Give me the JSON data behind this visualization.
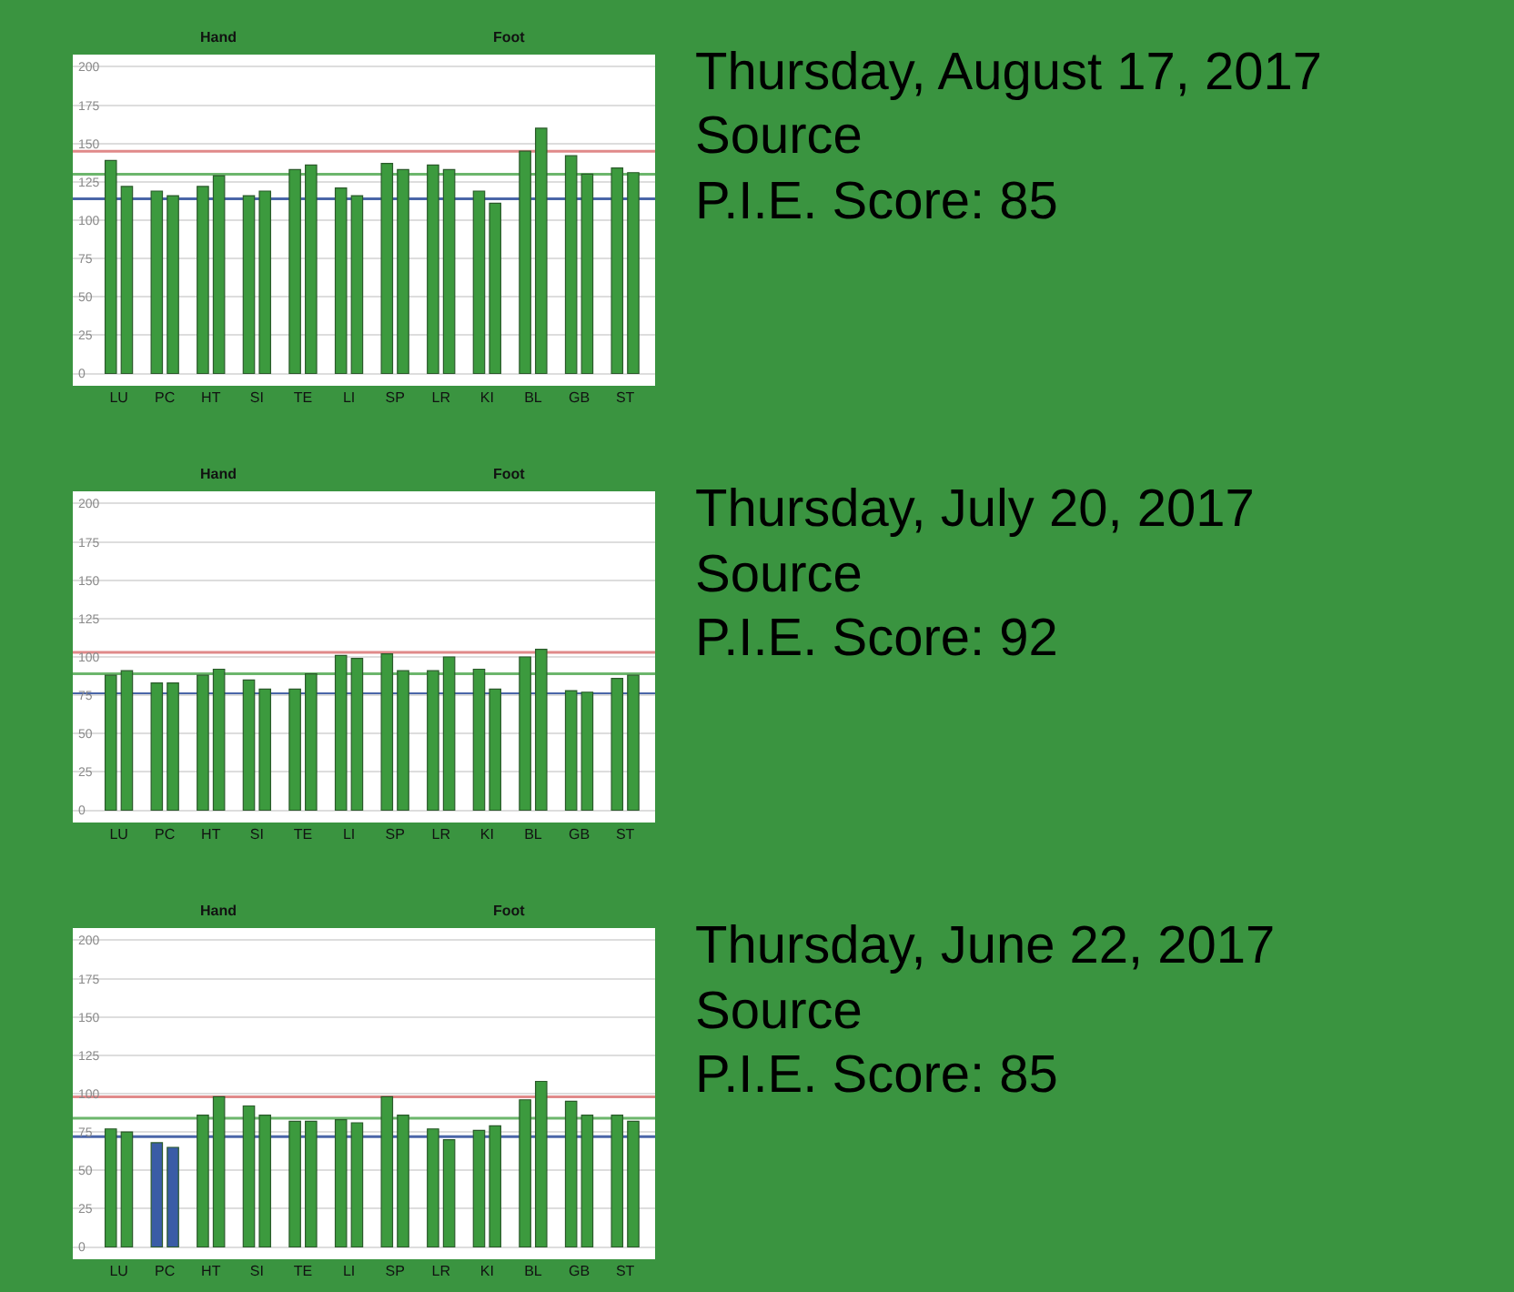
{
  "chart_data": [
    {
      "type": "bar",
      "annotations": [
        "Hand",
        "Foot"
      ],
      "categories": [
        "LU",
        "PC",
        "HT",
        "SI",
        "TE",
        "LI",
        "SP",
        "LR",
        "KI",
        "BL",
        "GB",
        "ST"
      ],
      "series": [
        {
          "color": "#3c9a3e",
          "values": [
            139,
            119,
            122,
            116,
            133,
            121,
            137,
            136,
            119,
            145,
            142,
            134
          ]
        },
        {
          "color": "#3c9a3e",
          "values": [
            122,
            116,
            129,
            119,
            136,
            116,
            133,
            133,
            111,
            160,
            130,
            131
          ]
        }
      ],
      "ylim": [
        -8,
        208
      ],
      "yticks": [
        0,
        25,
        50,
        75,
        100,
        125,
        150,
        175,
        200
      ],
      "grid": "y",
      "ref_lines": [
        {
          "axis": "y",
          "value": 145,
          "color": "#e08a8a"
        },
        {
          "axis": "y",
          "value": 130,
          "color": "#6cb66c"
        },
        {
          "axis": "y",
          "value": 114,
          "color": "#4a66a8"
        }
      ]
    },
    {
      "type": "other",
      "title": "Thursday, August 17, 2017",
      "annotations": [
        "Source",
        "P.I.E. Score: 85"
      ]
    },
    {
      "type": "bar",
      "annotations": [
        "Hand",
        "Foot"
      ],
      "categories": [
        "LU",
        "PC",
        "HT",
        "SI",
        "TE",
        "LI",
        "SP",
        "LR",
        "KI",
        "BL",
        "GB",
        "ST"
      ],
      "series": [
        {
          "color": "#3c9a3e",
          "values": [
            88,
            83,
            88,
            85,
            79,
            101,
            102,
            91,
            92,
            100,
            78,
            86
          ]
        },
        {
          "color": "#3c9a3e",
          "values": [
            91,
            83,
            92,
            79,
            89,
            99,
            91,
            100,
            79,
            105,
            77,
            88
          ]
        }
      ],
      "ylim": [
        -8,
        208
      ],
      "yticks": [
        0,
        25,
        50,
        75,
        100,
        125,
        150,
        175,
        200
      ],
      "grid": "y",
      "ref_lines": [
        {
          "axis": "y",
          "value": 103,
          "color": "#e08a8a"
        },
        {
          "axis": "y",
          "value": 89,
          "color": "#6cb66c"
        },
        {
          "axis": "y",
          "value": 76,
          "color": "#4a66a8"
        }
      ]
    },
    {
      "type": "other",
      "title": "Thursday, July 20, 2017",
      "annotations": [
        "Source",
        "P.I.E. Score: 92"
      ]
    },
    {
      "type": "bar",
      "annotations": [
        "Hand",
        "Foot"
      ],
      "categories": [
        "LU",
        "PC",
        "HT",
        "SI",
        "TE",
        "LI",
        "SP",
        "LR",
        "KI",
        "BL",
        "GB",
        "ST"
      ],
      "series": [
        {
          "colors": [
            "#3c9a3e",
            "#3a5ca6",
            "#3c9a3e",
            "#3c9a3e",
            "#3c9a3e",
            "#3c9a3e",
            "#3c9a3e",
            "#3c9a3e",
            "#3c9a3e",
            "#3c9a3e",
            "#3c9a3e",
            "#3c9a3e"
          ],
          "values": [
            77,
            68,
            86,
            92,
            82,
            83,
            98,
            77,
            76,
            96,
            95,
            86
          ]
        },
        {
          "colors": [
            "#3c9a3e",
            "#3a5ca6",
            "#3c9a3e",
            "#3c9a3e",
            "#3c9a3e",
            "#3c9a3e",
            "#3c9a3e",
            "#3c9a3e",
            "#3c9a3e",
            "#3c9a3e",
            "#3c9a3e",
            "#3c9a3e"
          ],
          "values": [
            75,
            65,
            98,
            86,
            82,
            81,
            86,
            70,
            79,
            108,
            86,
            82
          ]
        }
      ],
      "ylim": [
        -8,
        208
      ],
      "yticks": [
        0,
        25,
        50,
        75,
        100,
        125,
        150,
        175,
        200
      ],
      "grid": "y",
      "ref_lines": [
        {
          "axis": "y",
          "value": 98,
          "color": "#e08a8a"
        },
        {
          "axis": "y",
          "value": 84,
          "color": "#6cb66c"
        },
        {
          "axis": "y",
          "value": 72,
          "color": "#4a66a8"
        }
      ]
    },
    {
      "type": "other",
      "title": "Thursday, June 22, 2017",
      "annotations": [
        "Source",
        "P.I.E. Score: 85"
      ]
    }
  ]
}
